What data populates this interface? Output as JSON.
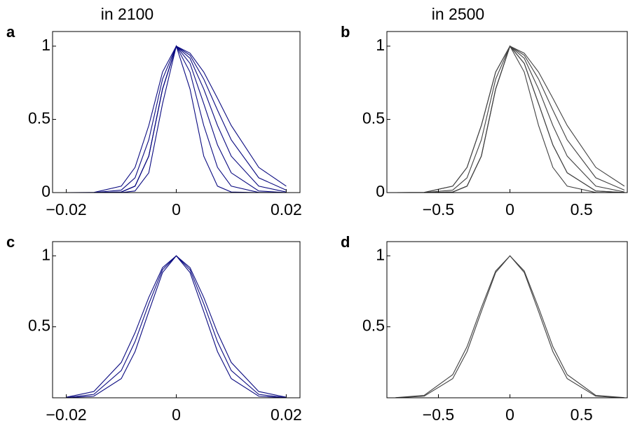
{
  "chart_data": [
    {
      "type": "line",
      "panel_label": "a",
      "title": "in 2100",
      "title_color": "#0a0a80",
      "x": [
        -0.02,
        -0.015,
        -0.01,
        -0.0075,
        -0.005,
        -0.0025,
        0,
        0.0025,
        0.005,
        0.0075,
        0.01,
        0.015,
        0.02
      ],
      "xlim": [
        -0.0225,
        0.0225
      ],
      "xticks": [
        {
          "value": -0.02,
          "label": "−0.02"
        },
        0,
        0.02
      ],
      "ylim": [
        0,
        1.1
      ],
      "yticks": [
        0,
        0.5,
        1
      ],
      "series": [
        {
          "color": "#0a0a80",
          "values": [
            0,
            0,
            0,
            0.011,
            0.135,
            0.607,
            1,
            0.707,
            0.249,
            0.044,
            0.004,
            0,
            0
          ]
        },
        {
          "color": "#0a0a80",
          "values": [
            0,
            0,
            0.004,
            0.044,
            0.249,
            0.707,
            1,
            0.823,
            0.458,
            0.172,
            0.044,
            0.001,
            0
          ]
        },
        {
          "color": "#0a0a80",
          "values": [
            0,
            0,
            0.004,
            0.044,
            0.249,
            0.707,
            1,
            0.882,
            0.607,
            0.325,
            0.135,
            0.011,
            0
          ]
        },
        {
          "color": "#0a0a80",
          "values": [
            0,
            0,
            0.017,
            0.101,
            0.36,
            0.775,
            1,
            0.917,
            0.707,
            0.458,
            0.249,
            0.044,
            0.004
          ]
        },
        {
          "color": "#0a0a80",
          "values": [
            0,
            0.001,
            0.044,
            0.172,
            0.458,
            0.823,
            1,
            0.938,
            0.775,
            0.563,
            0.36,
            0.101,
            0.017
          ]
        },
        {
          "color": "#0a0a80",
          "values": [
            0,
            0,
            0.004,
            0.044,
            0.249,
            0.707,
            1,
            0.952,
            0.823,
            0.644,
            0.458,
            0.172,
            0.044
          ]
        }
      ]
    },
    {
      "type": "line",
      "panel_label": "b",
      "title": "in 2500",
      "title_color": "#404040",
      "x": [
        -0.8,
        -0.6,
        -0.4,
        -0.3,
        -0.2,
        -0.1,
        0,
        0.1,
        0.2,
        0.3,
        0.4,
        0.6,
        0.8
      ],
      "xlim": [
        -0.86,
        0.82
      ],
      "xticks": [
        {
          "value": -0.5,
          "label": "−0.5"
        },
        0,
        0.5
      ],
      "ylim": [
        0,
        1.1
      ],
      "yticks": [
        0,
        0.5,
        1
      ],
      "series": [
        {
          "color": "#404040",
          "values": [
            0,
            0,
            0.004,
            0.044,
            0.249,
            0.707,
            1,
            0.823,
            0.458,
            0.172,
            0.044,
            0.001,
            0
          ]
        },
        {
          "color": "#404040",
          "values": [
            0,
            0,
            0.004,
            0.044,
            0.249,
            0.707,
            1,
            0.882,
            0.607,
            0.325,
            0.135,
            0.011,
            0
          ]
        },
        {
          "color": "#404040",
          "values": [
            0,
            0,
            0.017,
            0.101,
            0.36,
            0.775,
            1,
            0.917,
            0.707,
            0.458,
            0.249,
            0.044,
            0.004
          ]
        },
        {
          "color": "#404040",
          "values": [
            0,
            0.001,
            0.044,
            0.172,
            0.458,
            0.823,
            1,
            0.938,
            0.775,
            0.563,
            0.36,
            0.101,
            0.017
          ]
        },
        {
          "color": "#404040",
          "values": [
            0,
            0,
            0.004,
            0.044,
            0.249,
            0.707,
            1,
            0.952,
            0.823,
            0.644,
            0.458,
            0.172,
            0.044
          ]
        },
        {
          "color": "#404040",
          "values": [
            0,
            0.001,
            0.044,
            0.172,
            0.458,
            0.823,
            1,
            0.882,
            0.607,
            0.325,
            0.135,
            0.011,
            0
          ]
        }
      ]
    },
    {
      "type": "line",
      "panel_label": "c",
      "x": [
        -0.02,
        -0.015,
        -0.01,
        -0.0075,
        -0.005,
        -0.0025,
        0,
        0.0025,
        0.005,
        0.0075,
        0.01,
        0.015,
        0.02
      ],
      "xlim": [
        -0.0225,
        0.0225
      ],
      "xticks": [
        {
          "value": -0.02,
          "label": "−0.02"
        },
        0,
        0.02
      ],
      "ylim": [
        0,
        1.1
      ],
      "yticks": [
        0.5,
        1
      ],
      "series": [
        {
          "color": "#0a0a80",
          "values": [
            0,
            0.011,
            0.135,
            0.325,
            0.607,
            0.882,
            1,
            0.882,
            0.607,
            0.325,
            0.135,
            0.011,
            0
          ]
        },
        {
          "color": "#0a0a80",
          "values": [
            0.001,
            0.024,
            0.192,
            0.395,
            0.662,
            0.902,
            1,
            0.902,
            0.662,
            0.395,
            0.192,
            0.024,
            0.001
          ]
        },
        {
          "color": "#0a0a80",
          "values": [
            0.004,
            0.044,
            0.249,
            0.458,
            0.707,
            0.917,
            1,
            0.917,
            0.707,
            0.458,
            0.249,
            0.044,
            0.004
          ]
        }
      ]
    },
    {
      "type": "line",
      "panel_label": "d",
      "x": [
        -0.8,
        -0.6,
        -0.4,
        -0.3,
        -0.2,
        -0.1,
        0,
        0.1,
        0.2,
        0.3,
        0.4,
        0.6,
        0.8
      ],
      "xlim": [
        -0.86,
        0.82
      ],
      "xticks": [
        {
          "value": -0.5,
          "label": "−0.5"
        },
        0,
        0.5
      ],
      "ylim": [
        0,
        1.1
      ],
      "yticks": [
        0.5,
        1
      ],
      "series": [
        {
          "color": "#404040",
          "values": [
            0,
            0.011,
            0.135,
            0.325,
            0.607,
            0.882,
            1,
            0.882,
            0.607,
            0.325,
            0.135,
            0.011,
            0
          ]
        },
        {
          "color": "#404040",
          "values": [
            0.001,
            0.017,
            0.163,
            0.36,
            0.635,
            0.893,
            1,
            0.893,
            0.635,
            0.36,
            0.163,
            0.017,
            0.001
          ]
        }
      ]
    }
  ]
}
